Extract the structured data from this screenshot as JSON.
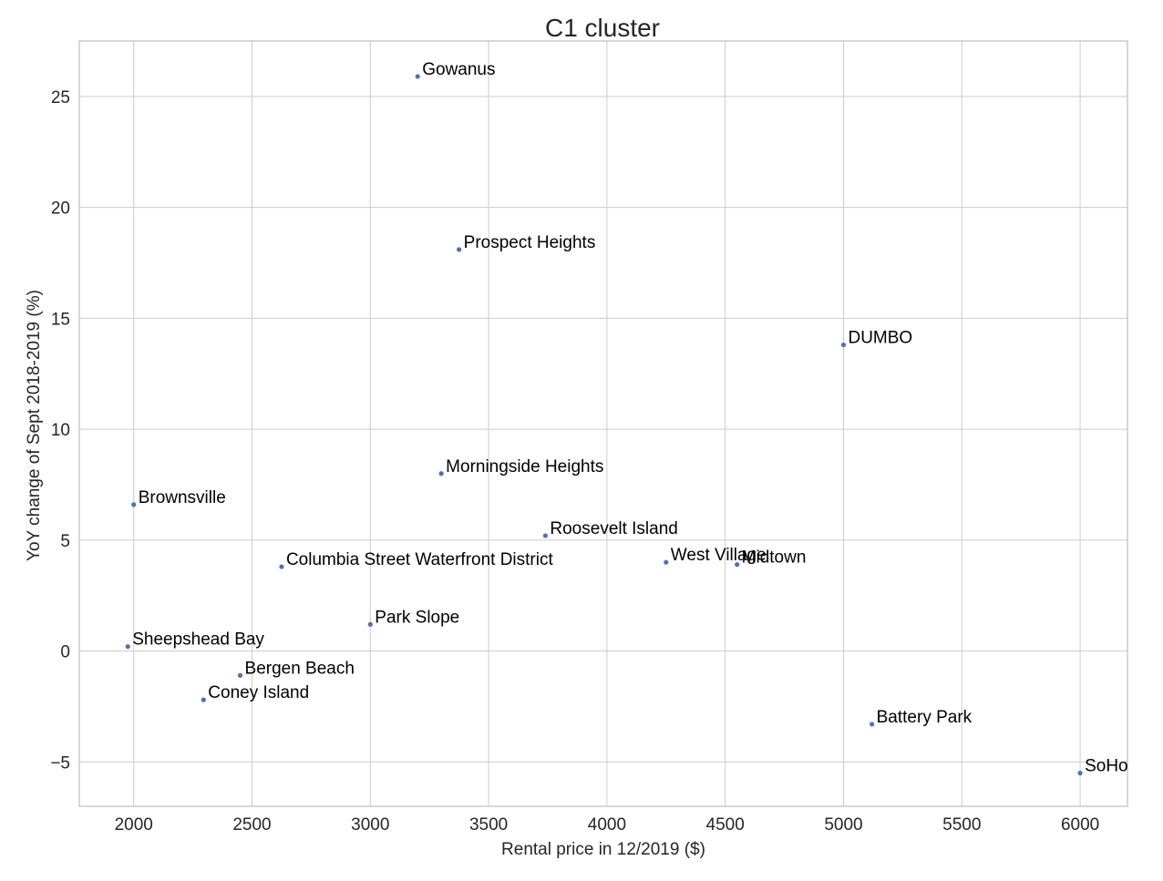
{
  "chart_data": {
    "type": "scatter",
    "title": "C1 cluster",
    "xlabel": "Rental price in 12/2019 ($)",
    "ylabel": "YoY change of Sept 2018-2019 (%)",
    "xlim": [
      1770,
      6200
    ],
    "ylim": [
      -7.0,
      27.5
    ],
    "xticks": [
      2000,
      2500,
      3000,
      3500,
      4000,
      4500,
      5000,
      5500,
      6000
    ],
    "yticks": [
      -5,
      0,
      5,
      10,
      15,
      20,
      25
    ],
    "xtick_labels": [
      "2000",
      "2500",
      "3000",
      "3500",
      "4000",
      "4500",
      "5000",
      "5500",
      "6000"
    ],
    "ytick_labels": [
      "−5",
      "0",
      "5",
      "10",
      "15",
      "20",
      "25"
    ],
    "grid": true,
    "marker_color": "#4c72b0",
    "points": [
      {
        "label": "Gowanus",
        "x": 3200,
        "y": 25.9
      },
      {
        "label": "Prospect Heights",
        "x": 3375,
        "y": 18.1
      },
      {
        "label": "DUMBO",
        "x": 5000,
        "y": 13.8
      },
      {
        "label": "Morningside Heights",
        "x": 3300,
        "y": 8.0
      },
      {
        "label": "Brownsville",
        "x": 2000,
        "y": 6.6
      },
      {
        "label": "Roosevelt Island",
        "x": 3740,
        "y": 5.2
      },
      {
        "label": "West Village",
        "x": 4250,
        "y": 4.0
      },
      {
        "label": "Midtown",
        "x": 4550,
        "y": 3.9
      },
      {
        "label": "Columbia Street Waterfront District",
        "x": 2625,
        "y": 3.8
      },
      {
        "label": "Park Slope",
        "x": 3000,
        "y": 1.2
      },
      {
        "label": "Sheepshead Bay",
        "x": 1975,
        "y": 0.2
      },
      {
        "label": "Bergen Beach",
        "x": 2450,
        "y": -1.1
      },
      {
        "label": "Coney Island",
        "x": 2295,
        "y": -2.2
      },
      {
        "label": "Battery Park",
        "x": 5120,
        "y": -3.3
      },
      {
        "label": "SoHo",
        "x": 6000,
        "y": -5.5
      }
    ]
  }
}
